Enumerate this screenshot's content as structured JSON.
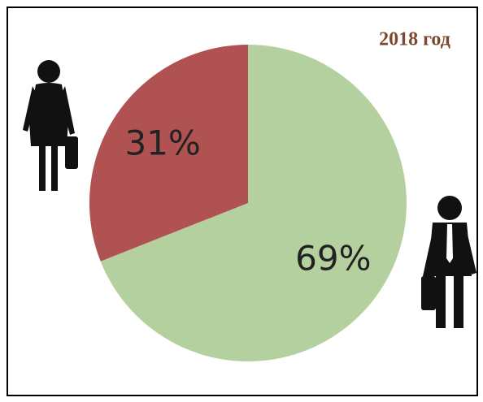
{
  "chart_data": {
    "type": "pie",
    "title": "2018 год",
    "values": [
      69,
      31
    ],
    "value_labels": [
      "69%",
      "31%"
    ],
    "colors": [
      "#b5d09f",
      "#b05252"
    ]
  }
}
